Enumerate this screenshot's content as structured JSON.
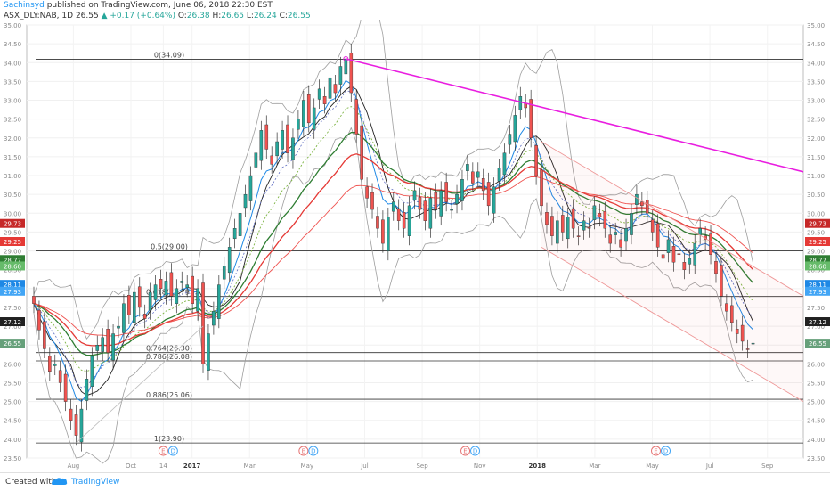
{
  "header": {
    "author": "Sachinsyd",
    "published_text": "published on TradingView.com, June 06, 2018 22:30 EST",
    "symbol": "ASX_DLY:NAB, 1D",
    "last": "26.55",
    "change": "▲ +0.17 (+0.64%)",
    "o_label": "O:",
    "o": "26.38",
    "h_label": "H:",
    "h": "26.65",
    "l_label": "L:",
    "l": "26.24",
    "c_label": "C:",
    "c": "26.55"
  },
  "footer": {
    "created_with": "Created with",
    "brand": "TradingView"
  },
  "colors": {
    "up": "#26a69a",
    "down": "#ef5350",
    "magenta": "#e91ee0",
    "channel": "#ef9a9a",
    "bb": "#9e9e9e"
  },
  "chart_data": {
    "type": "candlestick",
    "ylim": [
      23.5,
      35.0
    ],
    "y_ticks": [
      "23.50",
      "24.00",
      "24.50",
      "25.00",
      "25.50",
      "26.00",
      "26.50",
      "27.00",
      "27.50",
      "28.00",
      "28.50",
      "29.00",
      "29.50",
      "30.00",
      "30.50",
      "31.00",
      "31.50",
      "32.00",
      "32.50",
      "33.00",
      "33.50",
      "34.00",
      "34.50",
      "35.00"
    ],
    "x_ticks": [
      {
        "label": "Aug",
        "i": 11
      },
      {
        "label": "Oct",
        "i": 27
      },
      {
        "label": "14",
        "i": 36
      },
      {
        "label": "2017",
        "i": 44
      },
      {
        "label": "Mar",
        "i": 60
      },
      {
        "label": "May",
        "i": 76
      },
      {
        "label": "Jul",
        "i": 92
      },
      {
        "label": "Sep",
        "i": 108
      },
      {
        "label": "Nov",
        "i": 124
      },
      {
        "label": "2018",
        "i": 140
      },
      {
        "label": "Mar",
        "i": 156
      },
      {
        "label": "May",
        "i": 172
      },
      {
        "label": "Jul",
        "i": 188
      },
      {
        "label": "Sep",
        "i": 204
      }
    ],
    "close": [
      27.6,
      26.9,
      26.4,
      25.8,
      26.0,
      25.5,
      25.0,
      24.5,
      24.1,
      24.8,
      25.6,
      26.2,
      26.5,
      26.7,
      26.3,
      26.8,
      27.0,
      27.6,
      27.3,
      27.9,
      27.5,
      27.2,
      27.9,
      28.1,
      28.0,
      28.2,
      27.8,
      28.0,
      28.2,
      28.1,
      27.6,
      28.0,
      26.0,
      26.8,
      27.4,
      28.1,
      28.6,
      29.1,
      29.6,
      30.0,
      30.5,
      31.0,
      31.6,
      32.2,
      31.7,
      31.3,
      31.9,
      32.2,
      31.6,
      32.0,
      32.5,
      33.0,
      32.4,
      32.8,
      33.3,
      32.9,
      33.6,
      33.2,
      33.9,
      34.1,
      33.2,
      32.1,
      30.9,
      30.4,
      30.1,
      29.6,
      29.2,
      29.9,
      30.3,
      29.8,
      29.6,
      30.2,
      30.6,
      30.1,
      29.8,
      30.4,
      30.1,
      30.6,
      30.3,
      30.1,
      30.5,
      30.9,
      31.3,
      30.8,
      31.1,
      30.6,
      30.2,
      30.7,
      31.2,
      31.6,
      32.1,
      32.6,
      33.1,
      32.8,
      32.0,
      31.0,
      30.2,
      29.7,
      29.4,
      29.8,
      29.5,
      29.9,
      29.6,
      29.4,
      29.8,
      29.6,
      30.2,
      29.9,
      29.6,
      29.2,
      29.5,
      29.1,
      29.6,
      30.0,
      30.5,
      30.2,
      30.0,
      29.5,
      29.1,
      28.8,
      29.3,
      28.7,
      28.9,
      28.5,
      28.8,
      29.2,
      29.6,
      29.3,
      28.9,
      28.4,
      27.8,
      27.4,
      27.1,
      26.8,
      26.6,
      26.4,
      26.55
    ],
    "open_offset": [
      0.3,
      -0.35,
      0.45,
      -0.4
    ],
    "annotations": {
      "resistance_trendline": "magenta line from May 2017 high 34.1 to Oct 2018 ~31.1",
      "down_channel": "red channel from Nov 2017 highs to 2018 lows",
      "bollinger_bands": true,
      "moving_averages": [
        "blue",
        "green",
        "darkgreen",
        "red"
      ]
    },
    "fib_levels": [
      {
        "label": "0(34.09)",
        "value": 34.09
      },
      {
        "label": "0.5(29.00)",
        "value": 29.0
      },
      {
        "label": "0.618(27.79)",
        "value": 27.79
      },
      {
        "label": "0.764(26.30)",
        "value": 26.3
      },
      {
        "label": "0.786(26.08)",
        "value": 26.08
      },
      {
        "label": "0.886(25.06)",
        "value": 25.06
      },
      {
        "label": "1(23.90)",
        "value": 23.9
      }
    ],
    "price_tags": [
      {
        "text": "29.73",
        "value": 29.73,
        "color": "#c62828"
      },
      {
        "text": "29.25",
        "value": 29.25,
        "color": "#e53935"
      },
      {
        "text": "28.77",
        "value": 28.77,
        "color": "#2e7d32"
      },
      {
        "text": "28.60",
        "value": 28.6,
        "color": "#66bb6a"
      },
      {
        "text": "28.11",
        "value": 28.11,
        "color": "#1e88e5"
      },
      {
        "text": "27.93",
        "value": 27.93,
        "color": "#42a5f5"
      },
      {
        "text": "27.12",
        "value": 27.12,
        "color": "#212121"
      },
      {
        "text": "26.55",
        "value": 26.55,
        "color": "#66a07a"
      }
    ],
    "events": [
      {
        "i": 36,
        "labels": [
          "E",
          "D"
        ]
      },
      {
        "i": 75,
        "labels": [
          "E",
          "D"
        ]
      },
      {
        "i": 120,
        "labels": [
          "E",
          "D"
        ]
      },
      {
        "i": 173,
        "labels": [
          "E",
          "D"
        ]
      }
    ]
  }
}
